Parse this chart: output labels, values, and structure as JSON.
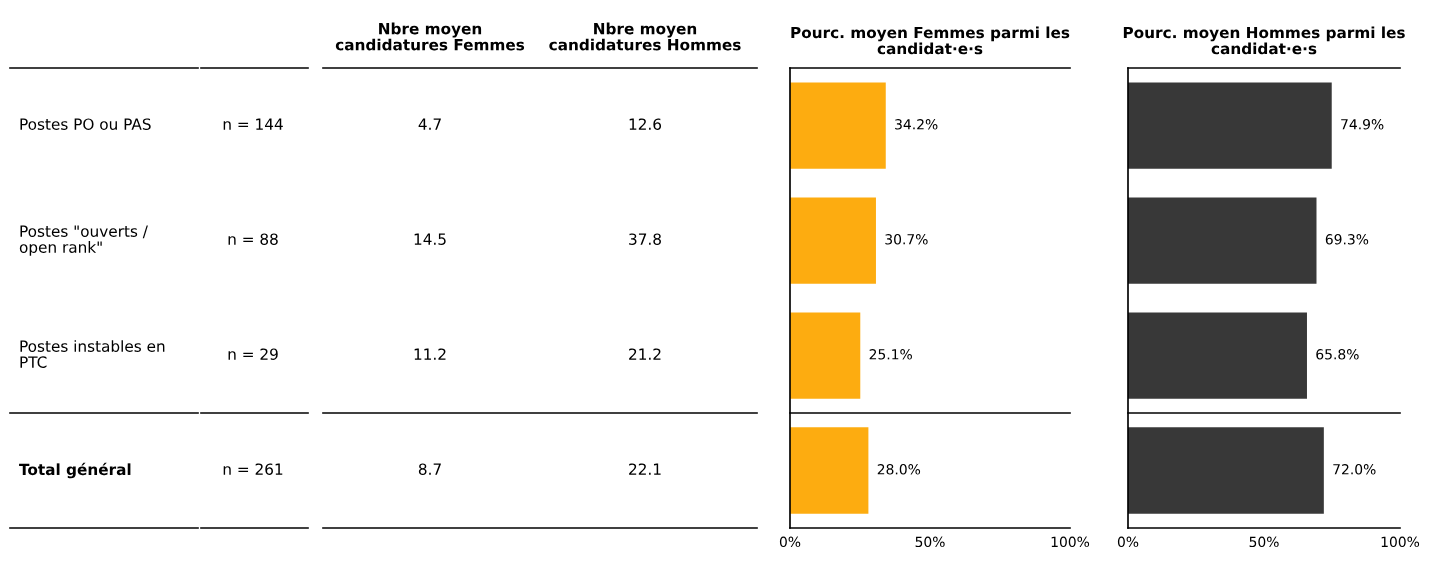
{
  "chart_data": [
    {
      "type": "other",
      "categories": [
        null,
        null,
        "Nbre moyen\ncandidatures Femmes",
        "Nbre moyen\ncandidatures Hommes"
      ],
      "y_categories": [
        "Postes PO ou PAS",
        "Postes \"ouverts /\nopen rank\"",
        "Postes instables en\nPTC",
        "Total général"
      ],
      "cell_labels": [
        [
          "n = 144",
          "4.7",
          "12.6"
        ],
        [
          "n = 88",
          "14.5",
          "37.8"
        ],
        [
          "n = 29",
          "11.2",
          "21.2"
        ],
        [
          "n = 261",
          "8.7",
          "22.1"
        ]
      ]
    },
    {
      "type": "bar",
      "orientation": "horizontal",
      "title": "Pourc. moyen Femmes parmi les\ncandidat·e·s",
      "categories": [
        null,
        null,
        null,
        null
      ],
      "values": [
        34.2,
        30.7,
        25.1,
        28.0
      ],
      "value_labels": [
        "34.2%",
        "30.7%",
        "25.1%",
        "28.0%"
      ],
      "color": "#fdac10",
      "xlim": [
        0,
        100
      ],
      "xticks": [
        {
          "value": 0,
          "label": "0%"
        },
        {
          "value": 50,
          "label": "50%"
        },
        {
          "value": 100,
          "label": "100%"
        }
      ],
      "grid": false,
      "legend": false
    },
    {
      "type": "bar",
      "orientation": "horizontal",
      "title": "Pourc. moyen Hommes parmi les\ncandidat·e·s",
      "categories": [
        null,
        null,
        null,
        null
      ],
      "values": [
        74.9,
        69.3,
        65.8,
        72.0
      ],
      "value_labels": [
        "74.9%",
        "69.3%",
        "65.8%",
        "72.0%"
      ],
      "color": "#383838",
      "xlim": [
        0,
        100
      ],
      "xticks": [
        {
          "value": 0,
          "label": "0%"
        },
        {
          "value": 50,
          "label": "50%"
        },
        {
          "value": 100,
          "label": "100%"
        }
      ],
      "grid": false,
      "legend": false
    }
  ]
}
